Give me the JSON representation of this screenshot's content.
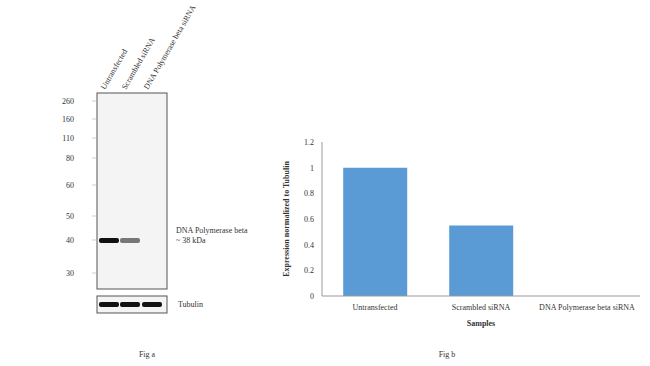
{
  "figure_a": {
    "caption": "Fig a",
    "lanes": [
      "Untransfected",
      "Scrambled siRNA",
      "DNA Polymerase beta siRNA"
    ],
    "markers": [
      260,
      160,
      110,
      80,
      60,
      50,
      40,
      30
    ],
    "band_label": [
      "DNA Polymerase beta",
      "~ 38 kDa"
    ],
    "loading_control": "Tubulin"
  },
  "chart_data": {
    "type": "bar",
    "caption": "Fig b",
    "categories": [
      "Untransfected",
      "Scrambled siRNA",
      "DNA Polymerase beta siRNA"
    ],
    "values": [
      1,
      0.55,
      0
    ],
    "color": "#5b9bd5",
    "xlabel": "Samples",
    "ylabel": "Expression normalized to Tubulin",
    "ylim": [
      0,
      1.2
    ],
    "yticks": [
      0,
      0.2,
      0.4,
      0.6,
      0.8,
      1,
      1.2
    ],
    "grid": false
  }
}
